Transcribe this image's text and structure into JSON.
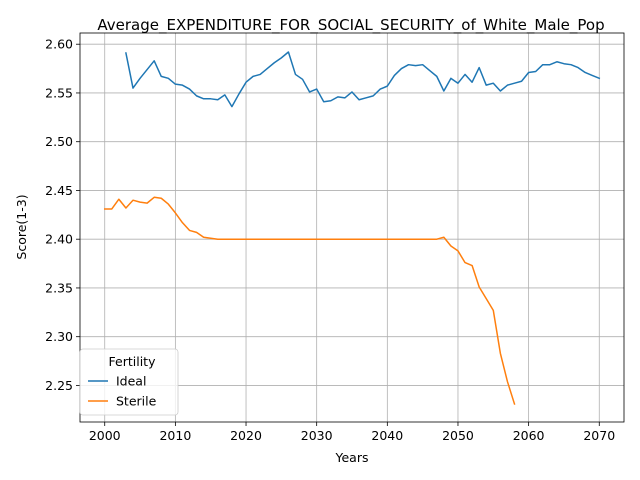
{
  "chart_data": {
    "type": "line",
    "title": "Average_EXPENDITURE_FOR_SOCIAL_SECURITY_of_White_Male_Pop",
    "xlabel": "Years",
    "ylabel": "Score(1-3)",
    "xlim": [
      1996.5,
      2073.5
    ],
    "ylim": [
      2.2125,
      2.6115
    ],
    "xticks": [
      2000,
      2010,
      2020,
      2030,
      2040,
      2050,
      2060,
      2070
    ],
    "xtick_labels": [
      "2000",
      "2010",
      "2020",
      "2030",
      "2040",
      "2050",
      "2060",
      "2070"
    ],
    "yticks": [
      2.25,
      2.3,
      2.35,
      2.4,
      2.45,
      2.5,
      2.55,
      2.6
    ],
    "ytick_labels": [
      "2.25",
      "2.30",
      "2.35",
      "2.40",
      "2.45",
      "2.50",
      "2.55",
      "2.60"
    ],
    "grid": true,
    "legend": {
      "title": "Fertility",
      "placement": "lower-left"
    },
    "series": [
      {
        "name": "Ideal",
        "color": "#1f77b4",
        "x": [
          2003,
          2004,
          2005,
          2006,
          2007,
          2008,
          2009,
          2010,
          2011,
          2012,
          2013,
          2014,
          2015,
          2016,
          2017,
          2018,
          2019,
          2020,
          2021,
          2022,
          2023,
          2024,
          2025,
          2026,
          2027,
          2028,
          2029,
          2030,
          2031,
          2032,
          2033,
          2034,
          2035,
          2036,
          2037,
          2038,
          2039,
          2040,
          2041,
          2042,
          2043,
          2044,
          2045,
          2046,
          2047,
          2048,
          2049,
          2050,
          2051,
          2052,
          2053,
          2054,
          2055,
          2056,
          2057,
          2058,
          2059,
          2060,
          2061,
          2062,
          2063,
          2064,
          2065,
          2066,
          2067,
          2068,
          2069,
          2070
        ],
        "values": [
          2.591,
          2.555,
          2.565,
          2.574,
          2.583,
          2.567,
          2.565,
          2.559,
          2.558,
          2.554,
          2.547,
          2.544,
          2.544,
          2.543,
          2.548,
          2.536,
          2.549,
          2.561,
          2.567,
          2.569,
          2.575,
          2.581,
          2.586,
          2.592,
          2.569,
          2.564,
          2.551,
          2.554,
          2.541,
          2.542,
          2.546,
          2.545,
          2.551,
          2.543,
          2.545,
          2.547,
          2.554,
          2.557,
          2.568,
          2.575,
          2.579,
          2.578,
          2.579,
          2.573,
          2.567,
          2.552,
          2.565,
          2.56,
          2.569,
          2.561,
          2.576,
          2.558,
          2.56,
          2.552,
          2.558,
          2.56,
          2.562,
          2.571,
          2.572,
          2.579,
          2.579,
          2.582,
          2.58,
          2.579,
          2.576,
          2.571,
          2.568,
          2.565
        ]
      },
      {
        "name": "Sterile",
        "color": "#ff7f0e",
        "x": [
          2000,
          2001,
          2002,
          2003,
          2004,
          2005,
          2006,
          2007,
          2008,
          2009,
          2010,
          2011,
          2012,
          2013,
          2014,
          2015,
          2016,
          2017,
          2018,
          2019,
          2020,
          2021,
          2022,
          2023,
          2024,
          2025,
          2026,
          2027,
          2028,
          2029,
          2030,
          2031,
          2032,
          2033,
          2034,
          2035,
          2036,
          2037,
          2038,
          2039,
          2040,
          2041,
          2042,
          2043,
          2044,
          2045,
          2046,
          2047,
          2048,
          2049,
          2050,
          2051,
          2052,
          2053,
          2054,
          2055,
          2056,
          2057,
          2058
        ],
        "values": [
          2.431,
          2.431,
          2.441,
          2.432,
          2.44,
          2.438,
          2.437,
          2.443,
          2.442,
          2.436,
          2.427,
          2.417,
          2.409,
          2.407,
          2.402,
          2.401,
          2.4,
          2.4,
          2.4,
          2.4,
          2.4,
          2.4,
          2.4,
          2.4,
          2.4,
          2.4,
          2.4,
          2.4,
          2.4,
          2.4,
          2.4,
          2.4,
          2.4,
          2.4,
          2.4,
          2.4,
          2.4,
          2.4,
          2.4,
          2.4,
          2.4,
          2.4,
          2.4,
          2.4,
          2.4,
          2.4,
          2.4,
          2.4,
          2.402,
          2.393,
          2.388,
          2.376,
          2.373,
          2.351,
          2.339,
          2.327,
          2.283,
          2.254,
          2.231
        ]
      }
    ]
  }
}
